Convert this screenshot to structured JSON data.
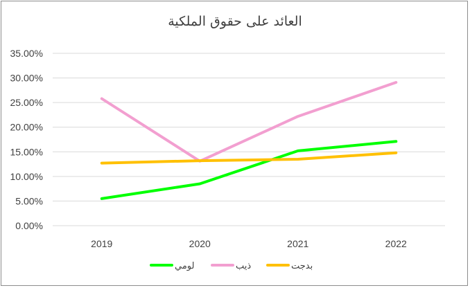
{
  "chart_data": {
    "type": "line",
    "title": "العائد على حقوق الملكية",
    "categories": [
      "2019",
      "2020",
      "2021",
      "2022"
    ],
    "y_ticks": [
      "0.00%",
      "5.00%",
      "10.00%",
      "15.00%",
      "20.00%",
      "25.00%",
      "30.00%",
      "35.00%"
    ],
    "ylim": [
      0,
      0.35
    ],
    "grid": true,
    "legend_position": "bottom",
    "series": [
      {
        "name": "لومي",
        "color": "#00ff00",
        "values": [
          0.055,
          0.085,
          0.152,
          0.171
        ]
      },
      {
        "name": "ذيب",
        "color": "#f29fd0",
        "values": [
          0.258,
          0.131,
          0.222,
          0.291
        ]
      },
      {
        "name": "بدجت",
        "color": "#ffc000",
        "values": [
          0.127,
          0.132,
          0.135,
          0.148
        ]
      }
    ]
  }
}
